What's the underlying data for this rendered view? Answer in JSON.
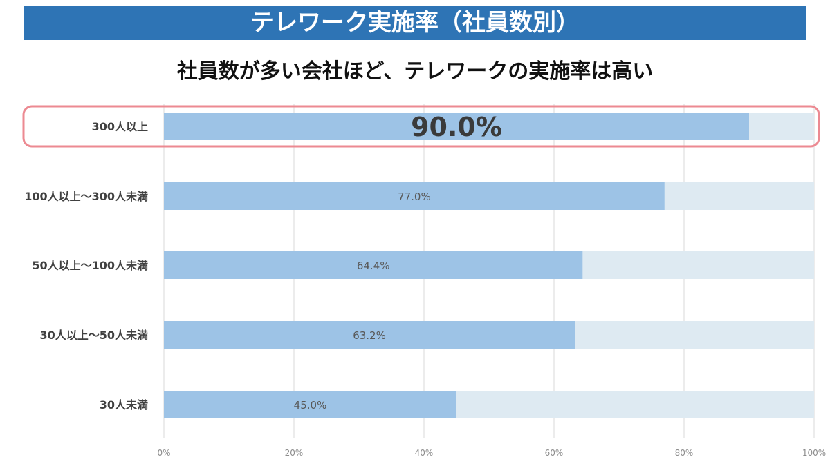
{
  "chart_data": {
    "type": "bar",
    "orientation": "horizontal",
    "stacked_to_100": true,
    "title": "テレワーク実施率（社員数別）",
    "subtitle": "社員数が多い会社ほど、テレワークの実施率は高い",
    "categories": [
      "300人以上",
      "100人以上～300人未満",
      "50人以上～100人未満",
      "30人以上～50人未満",
      "30人未満"
    ],
    "values": [
      90.0,
      77.0,
      64.4,
      63.2,
      45.0
    ],
    "data_labels": [
      "90.0%",
      "77.0%",
      "64.4%",
      "63.2%",
      "45.0%"
    ],
    "xlim": [
      0,
      100
    ],
    "xticks": [
      0,
      20,
      40,
      60,
      80,
      100
    ],
    "xtick_labels": [
      "0%",
      "20%",
      "40%",
      "60%",
      "80%",
      "100%"
    ],
    "grid": true,
    "highlighted_category": "300人以上",
    "colors": {
      "bar": "#9dc3e6",
      "remainder": "#deeaf2",
      "highlight": "#ec8a92",
      "banner": "#2e74b5"
    }
  }
}
